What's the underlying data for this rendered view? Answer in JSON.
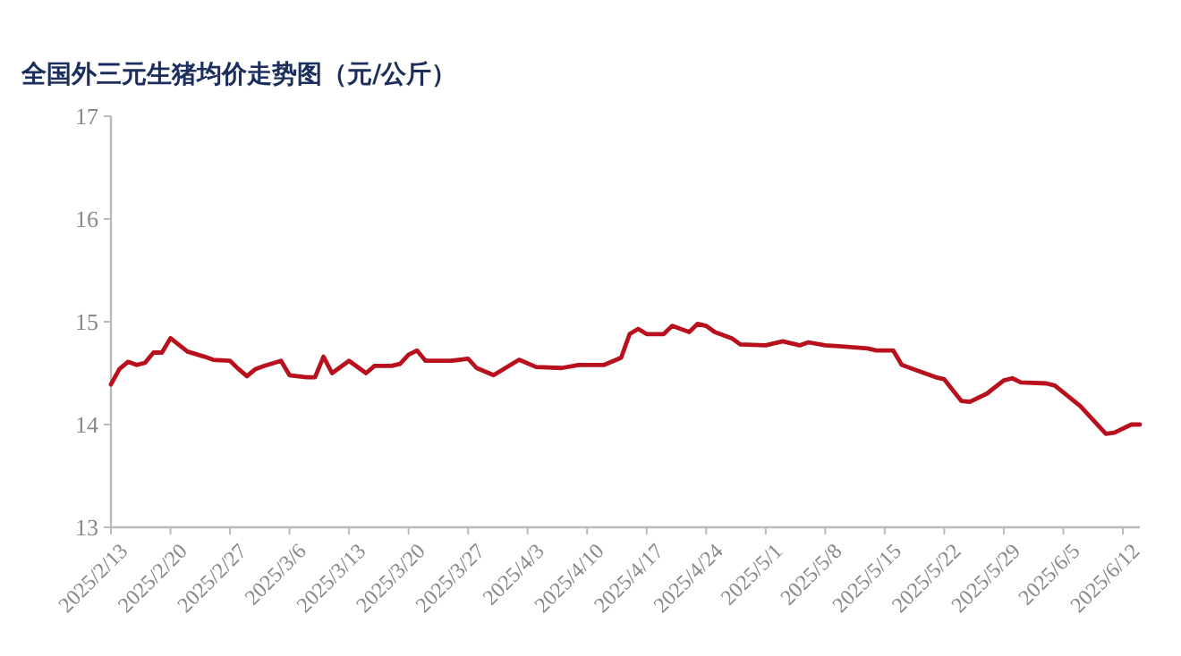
{
  "chart_data": {
    "type": "line",
    "title": "全国外三元生猪均价走势图（元/公斤）",
    "x": [
      "2025-02-13",
      "2025-02-14",
      "2025-02-15",
      "2025-02-16",
      "2025-02-17",
      "2025-02-18",
      "2025-02-19",
      "2025-02-20",
      "2025-02-22",
      "2025-02-24",
      "2025-02-25",
      "2025-02-27",
      "2025-02-28",
      "2025-03-01",
      "2025-03-02",
      "2025-03-03",
      "2025-03-05",
      "2025-03-06",
      "2025-03-08",
      "2025-03-09",
      "2025-03-10",
      "2025-03-11",
      "2025-03-13",
      "2025-03-15",
      "2025-03-16",
      "2025-03-18",
      "2025-03-19",
      "2025-03-20",
      "2025-03-21",
      "2025-03-22",
      "2025-03-25",
      "2025-03-27",
      "2025-03-28",
      "2025-03-30",
      "2025-04-02",
      "2025-04-04",
      "2025-04-07",
      "2025-04-09",
      "2025-04-12",
      "2025-04-14",
      "2025-04-15",
      "2025-04-16",
      "2025-04-17",
      "2025-04-19",
      "2025-04-20",
      "2025-04-22",
      "2025-04-23",
      "2025-04-24",
      "2025-04-25",
      "2025-04-27",
      "2025-04-28",
      "2025-05-01",
      "2025-05-03",
      "2025-05-05",
      "2025-05-06",
      "2025-05-08",
      "2025-05-10",
      "2025-05-13",
      "2025-05-14",
      "2025-05-16",
      "2025-05-17",
      "2025-05-19",
      "2025-05-21",
      "2025-05-22",
      "2025-05-24",
      "2025-05-25",
      "2025-05-27",
      "2025-05-29",
      "2025-05-30",
      "2025-05-31",
      "2025-06-03",
      "2025-06-04",
      "2025-06-07",
      "2025-06-10",
      "2025-06-11",
      "2025-06-13",
      "2025-06-14"
    ],
    "series": [
      {
        "color": "#b8101c",
        "values": [
          14.39,
          14.54,
          14.61,
          14.58,
          14.6,
          14.7,
          14.7,
          14.84,
          14.71,
          14.66,
          14.63,
          14.62,
          14.54,
          14.47,
          14.54,
          14.57,
          14.62,
          14.48,
          14.46,
          14.46,
          14.66,
          14.5,
          14.62,
          14.5,
          14.57,
          14.57,
          14.59,
          14.68,
          14.72,
          14.62,
          14.62,
          14.64,
          14.55,
          14.48,
          14.63,
          14.56,
          14.55,
          14.58,
          14.58,
          14.65,
          14.88,
          14.93,
          14.88,
          14.88,
          14.96,
          14.9,
          14.98,
          14.96,
          14.9,
          14.84,
          14.78,
          14.77,
          14.81,
          14.77,
          14.8,
          14.77,
          14.76,
          14.74,
          14.72,
          14.72,
          14.58,
          14.52,
          14.46,
          14.44,
          14.23,
          14.22,
          14.3,
          14.43,
          14.45,
          14.41,
          14.4,
          14.38,
          14.18,
          13.91,
          13.92,
          14.0,
          14.0
        ]
      }
    ],
    "xlim": [
      "2025-02-13",
      "2025-06-14"
    ],
    "xticks": [
      {
        "value": "2025-02-13",
        "label": "2025/2/13"
      },
      {
        "value": "2025-02-20",
        "label": "2025/2/20"
      },
      {
        "value": "2025-02-27",
        "label": "2025/2/27"
      },
      {
        "value": "2025-03-06",
        "label": "2025/3/6"
      },
      {
        "value": "2025-03-13",
        "label": "2025/3/13"
      },
      {
        "value": "2025-03-20",
        "label": "2025/3/20"
      },
      {
        "value": "2025-03-27",
        "label": "2025/3/27"
      },
      {
        "value": "2025-04-03",
        "label": "2025/4/3"
      },
      {
        "value": "2025-04-10",
        "label": "2025/4/10"
      },
      {
        "value": "2025-04-17",
        "label": "2025/4/17"
      },
      {
        "value": "2025-04-24",
        "label": "2025/4/24"
      },
      {
        "value": "2025-05-01",
        "label": "2025/5/1"
      },
      {
        "value": "2025-05-08",
        "label": "2025/5/8"
      },
      {
        "value": "2025-05-15",
        "label": "2025/5/15"
      },
      {
        "value": "2025-05-22",
        "label": "2025/5/22"
      },
      {
        "value": "2025-05-29",
        "label": "2025/5/29"
      },
      {
        "value": "2025-06-05",
        "label": "2025/6/5"
      },
      {
        "value": "2025-06-12",
        "label": "2025/6/12"
      }
    ],
    "ylim": [
      13,
      17
    ],
    "yticks": [
      13,
      14,
      15,
      16,
      17
    ],
    "grid": false,
    "marker": "none",
    "line_style": "solid"
  }
}
